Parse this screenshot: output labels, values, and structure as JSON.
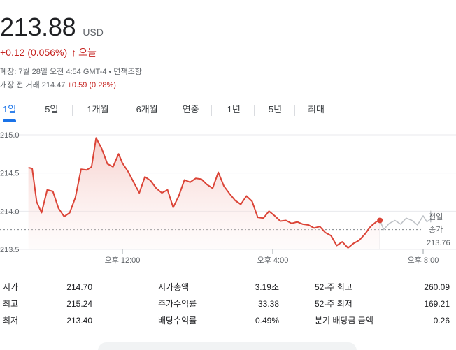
{
  "quote": {
    "price": "213.88",
    "currency": "USD",
    "change": "+0.12 (0.056%)",
    "change_arrow": "↑",
    "period_label": "오늘",
    "close_info": "폐장: 7월 28일 오전 4:54 GMT-4 • 면책조항",
    "premarket_label": "개장 전 거래 214.47",
    "premarket_change": "+0.59 (0.28%)"
  },
  "tabs": [
    {
      "label": "1일",
      "active": true
    },
    {
      "label": "5일",
      "active": false
    },
    {
      "label": "1개월",
      "active": false
    },
    {
      "label": "6개월",
      "active": false
    },
    {
      "label": "연중",
      "active": false
    },
    {
      "label": "1년",
      "active": false
    },
    {
      "label": "5년",
      "active": false
    },
    {
      "label": "최대",
      "active": false
    }
  ],
  "chart_data": {
    "type": "line",
    "y_ticks": [
      "215.0",
      "214.5",
      "214.0",
      "213.5"
    ],
    "ylim": [
      213.5,
      215.0
    ],
    "x_ticks": [
      "오후 12:00",
      "오후 4:00",
      "오후 8:00"
    ],
    "x_tick_hours": [
      12,
      16,
      20
    ],
    "xlim": [
      9.5,
      20.2
    ],
    "previous_close_label_1": "전일",
    "previous_close_label_2": "종가",
    "previous_close": "213.76",
    "previous_close_value": 213.76,
    "regular_color": "#db4437",
    "extended_color": "#bdc1c6",
    "regular_series": [
      [
        9.5,
        214.57
      ],
      [
        9.6,
        214.56
      ],
      [
        9.72,
        214.12
      ],
      [
        9.85,
        213.98
      ],
      [
        10.0,
        214.28
      ],
      [
        10.15,
        214.26
      ],
      [
        10.3,
        214.04
      ],
      [
        10.45,
        213.93
      ],
      [
        10.6,
        213.98
      ],
      [
        10.75,
        214.18
      ],
      [
        10.9,
        214.55
      ],
      [
        11.05,
        214.54
      ],
      [
        11.18,
        214.58
      ],
      [
        11.3,
        214.96
      ],
      [
        11.45,
        214.82
      ],
      [
        11.6,
        214.62
      ],
      [
        11.75,
        214.58
      ],
      [
        11.9,
        214.75
      ],
      [
        12.0,
        214.63
      ],
      [
        12.15,
        214.52
      ],
      [
        12.3,
        214.38
      ],
      [
        12.45,
        214.24
      ],
      [
        12.6,
        214.45
      ],
      [
        12.75,
        214.4
      ],
      [
        12.9,
        214.3
      ],
      [
        13.05,
        214.24
      ],
      [
        13.2,
        214.28
      ],
      [
        13.35,
        214.05
      ],
      [
        13.5,
        214.2
      ],
      [
        13.65,
        214.41
      ],
      [
        13.8,
        214.38
      ],
      [
        13.95,
        214.43
      ],
      [
        14.1,
        214.42
      ],
      [
        14.25,
        214.35
      ],
      [
        14.4,
        214.3
      ],
      [
        14.55,
        214.51
      ],
      [
        14.7,
        214.33
      ],
      [
        14.85,
        214.23
      ],
      [
        15.0,
        214.14
      ],
      [
        15.15,
        214.09
      ],
      [
        15.3,
        214.2
      ],
      [
        15.45,
        214.13
      ],
      [
        15.6,
        213.92
      ],
      [
        15.75,
        213.91
      ],
      [
        15.9,
        214.0
      ],
      [
        16.05,
        213.94
      ],
      [
        16.2,
        213.87
      ],
      [
        16.35,
        213.88
      ],
      [
        16.5,
        213.84
      ],
      [
        16.65,
        213.86
      ],
      [
        16.8,
        213.83
      ],
      [
        16.95,
        213.82
      ],
      [
        17.1,
        213.78
      ],
      [
        17.25,
        213.8
      ],
      [
        17.4,
        213.72
      ],
      [
        17.55,
        213.68
      ],
      [
        17.7,
        213.55
      ],
      [
        17.85,
        213.6
      ],
      [
        18.0,
        213.52
      ],
      [
        18.15,
        213.58
      ],
      [
        18.3,
        213.62
      ],
      [
        18.45,
        213.7
      ],
      [
        18.6,
        213.8
      ],
      [
        18.75,
        213.86
      ],
      [
        18.85,
        213.88
      ]
    ],
    "extended_series": [
      [
        18.85,
        213.88
      ],
      [
        18.95,
        213.76
      ],
      [
        19.1,
        213.84
      ],
      [
        19.25,
        213.88
      ],
      [
        19.4,
        213.83
      ],
      [
        19.55,
        213.91
      ],
      [
        19.7,
        213.88
      ],
      [
        19.85,
        213.82
      ],
      [
        20.0,
        213.94
      ],
      [
        20.1,
        213.86
      ],
      [
        20.2,
        213.9
      ],
      [
        20.3,
        213.86
      ],
      [
        20.4,
        213.97
      ],
      [
        20.5,
        213.9
      ],
      [
        20.6,
        214.0
      ],
      [
        20.7,
        213.95
      ],
      [
        20.85,
        213.97
      ],
      [
        21.0,
        213.9
      ],
      [
        21.15,
        213.86
      ],
      [
        21.3,
        213.87
      ],
      [
        21.45,
        213.86
      ],
      [
        21.6,
        213.95
      ],
      [
        21.75,
        213.88
      ],
      [
        21.9,
        213.9
      ],
      [
        22.05,
        213.87
      ],
      [
        22.2,
        213.89
      ],
      [
        22.35,
        213.86
      ],
      [
        22.5,
        213.87
      ],
      [
        22.65,
        213.86
      ],
      [
        22.8,
        213.88
      ],
      [
        22.95,
        213.86
      ],
      [
        23.1,
        213.87
      ],
      [
        23.25,
        213.88
      ],
      [
        23.4,
        213.86
      ],
      [
        23.55,
        213.88
      ],
      [
        23.7,
        213.9
      ],
      [
        23.85,
        213.92
      ],
      [
        24.0,
        213.98
      ]
    ]
  },
  "stats": {
    "open_label": "시가",
    "open_value": "214.70",
    "high_label": "최고",
    "high_value": "215.24",
    "low_label": "최저",
    "low_value": "213.40",
    "mktcap_label": "시가총액",
    "mktcap_value": "3.19조",
    "pe_label": "주가수익률",
    "pe_value": "33.38",
    "divyield_label": "배당수익률",
    "divyield_value": "0.49%",
    "wk52_high_label": "52-주 최고",
    "wk52_high_value": "260.09",
    "wk52_low_label": "52-주 최저",
    "wk52_low_value": "169.21",
    "qtr_div_label": "분기 배당금 금액",
    "qtr_div_value": "0.26"
  }
}
